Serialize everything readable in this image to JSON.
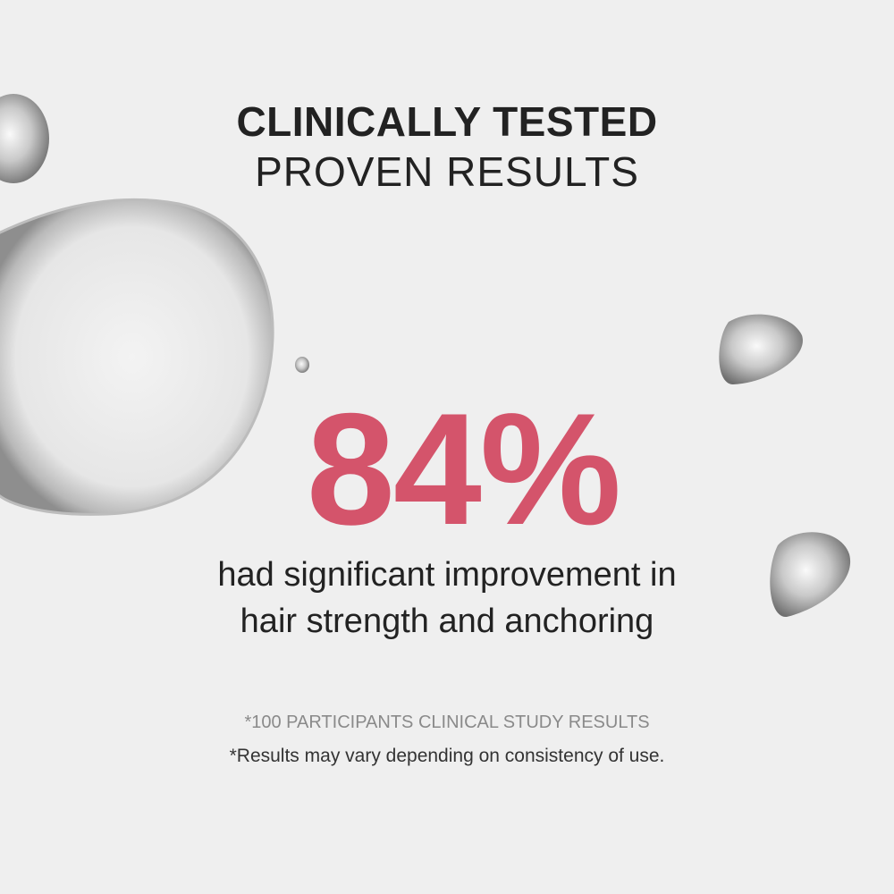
{
  "headline": {
    "line1": "CLINICALLY TESTED",
    "line2": "PROVEN RESULTS"
  },
  "stat": {
    "value": "84%",
    "color": "#d4546b"
  },
  "description": {
    "line1": "had significant improvement in",
    "line2": "hair strength and anchoring"
  },
  "footnotes": {
    "study": "*100 PARTICIPANTS CLINICAL STUDY RESULTS",
    "disclaimer": "*Results may vary depending on consistency of use."
  }
}
